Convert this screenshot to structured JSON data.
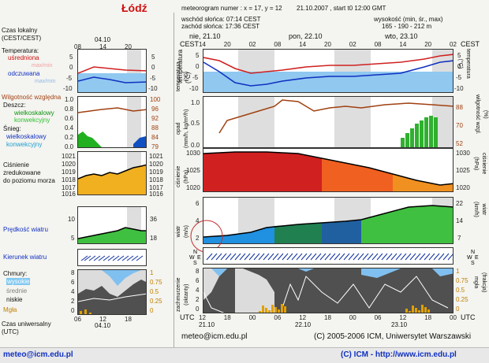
{
  "header": {
    "city": "Łódź",
    "meteogram_label": "meteorogram numer : x = 17, y = 12",
    "run_info": "21.10.2007 , start t0 12:00 GMT",
    "sunrise": "wschód słońca: 07:14 CEST",
    "sunset": "zachód słońca: 17:36 CEST",
    "elevation_label": "wysokość (min, śr., max)",
    "elevation_values": "165 - 190 - 212 m"
  },
  "left_legend": {
    "local_time": "Czas lokalny\n(CEST/CEST)",
    "date_top": "04.10",
    "time_ticks_top": [
      "08",
      "14",
      "20"
    ],
    "temperature": {
      "title": "Temperatura:",
      "avg": "uśredniona",
      "avg_minmax": "max/min",
      "felt": "odczuwana",
      "felt_minmax": "max/min",
      "scale": [
        "5",
        "0",
        "-5",
        "-10"
      ]
    },
    "humidity": {
      "title": "Wilgotność względna",
      "scale_right": [
        "100",
        "96",
        "92",
        "88",
        "84",
        "79"
      ]
    },
    "rain": {
      "title": "Deszcz:",
      "large": "wielkoskalowy",
      "conv": "konwekcyjny",
      "scale": [
        "1.0",
        "0.8",
        "0.6",
        "0.4",
        "0.2",
        "0.0"
      ]
    },
    "snow": {
      "title": "Śnieg:",
      "large": "wielkoskalowy",
      "conv": "konwekcyjny"
    },
    "pressure": {
      "title": "Ciśnienie\nzredukowane\ndo poziomu morza",
      "scale": [
        "1021",
        "1020",
        "1019",
        "1018",
        "1017",
        "1016"
      ]
    },
    "wind_speed": {
      "title": "Prędkość wiatru",
      "scale_left": [
        "10",
        "5"
      ],
      "scale_right": [
        "36",
        "18"
      ]
    },
    "wind_dir": {
      "title": "Kierunek wiatru"
    },
    "clouds": {
      "title": "Chmury:",
      "high": "wysokie",
      "mid": "średnie",
      "low": "niskie",
      "fog": "Mgła",
      "scale_left": [
        "8",
        "6",
        "4",
        "2",
        "0"
      ],
      "scale_right": [
        "1",
        "0.75",
        "0.5",
        "0.25",
        "0"
      ]
    },
    "utc_ticks": [
      "06",
      "12",
      "18"
    ],
    "date_bottom": "04.10",
    "utc_label": "Czas uniwersalny\n(UTC)"
  },
  "main": {
    "top_axis": {
      "cest_left": "CEST",
      "cest_right": "CEST",
      "days": [
        "nie, 21.10",
        "pon, 22.10",
        "wto, 23.10"
      ],
      "hours": [
        "14",
        "20",
        "02",
        "08",
        "14",
        "20",
        "02",
        "08",
        "14",
        "20",
        "02"
      ]
    },
    "bottom_axis": {
      "utc_left": "UTC",
      "utc_right": "UTC",
      "hours": [
        "12",
        "18",
        "00",
        "06",
        "12",
        "18",
        "00",
        "06",
        "12",
        "18",
        "00"
      ],
      "dates": [
        "21.10",
        "22.10",
        "23.10"
      ]
    },
    "temperature": {
      "ylabel_left": "temperatura\n(°C)",
      "ylabel_right": "temperatura\n(°C)",
      "scale": [
        "5",
        "0",
        "-5",
        "-10"
      ]
    },
    "precip": {
      "ylabel_left": "opad\n(mm/h, kg/m²/h)",
      "ylabel_right": "(%)\nwilgotność wzgl.",
      "scale_left": [
        "1.0",
        "0.5",
        "0.0"
      ],
      "scale_right": [
        "88",
        "70",
        "52"
      ]
    },
    "pressure": {
      "ylabel_left": "ciśnienie\n(hPa)",
      "ylabel_right": "ciśnienie\n(hPa)",
      "scale": [
        "1030",
        "1025",
        "1020"
      ]
    },
    "wind": {
      "ylabel_left": "wiatr\n(m/s)",
      "ylabel_right": "wiatr\n(km/h)",
      "scale_left": [
        "6",
        "4",
        "2"
      ],
      "scale_right": [
        "22",
        "14",
        "7"
      ]
    },
    "clouds": {
      "ylabel_left": "zachmurzenie\n(oktanty)",
      "ylabel_right": "(frakcja)\nmgła",
      "scale_left": [
        "8",
        "6",
        "4",
        "2",
        "0"
      ],
      "scale_right": [
        "1",
        "0.75",
        "0.5",
        "0.25",
        "0"
      ]
    },
    "footer_email": "meteo@icm.edu.pl",
    "footer_copy": "(C) 2005-2006 ICM, Uniwersytet Warszawski"
  },
  "page_footer": {
    "email": "meteo@icm.edu.pl",
    "copy": "(C) ICM - http://www.icm.edu.pl"
  },
  "colors": {
    "temp_line": "#d02020",
    "felt_line": "#1030c0",
    "cold_fill": "#90c8f0",
    "humidity_line": "#a04010",
    "rain_conv": "#20b020",
    "pressure_fill": "#d02020",
    "wind_fill": "#40c040",
    "cloud_fill": "#505050",
    "fog_bar": "#e0a000"
  }
}
